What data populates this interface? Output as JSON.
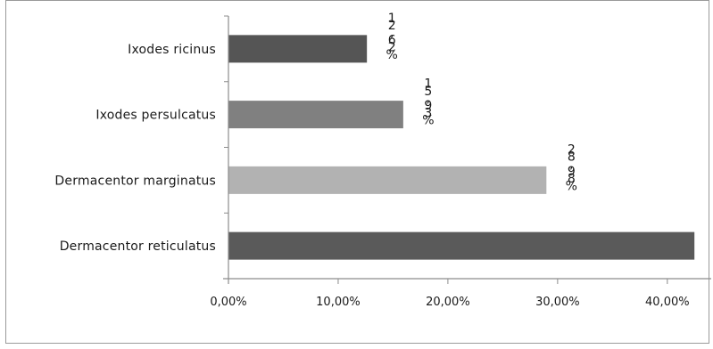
{
  "chart_data": {
    "type": "bar",
    "orientation": "horizontal",
    "title": "",
    "xlabel": "",
    "ylabel": "",
    "categories": [
      "Ixodes ricinus",
      "Ixodes persulcatus",
      "Dermacentor marginatus",
      "Dermacentor reticulatus"
    ],
    "values": [
      12.62,
      15.93,
      28.98,
      42.47
    ],
    "data_labels": [
      "12,62%",
      "15,93%",
      "28,98%",
      ""
    ],
    "bar_colors": [
      "#555555",
      "#808080",
      "#b2b2b2",
      "#5a5a5a"
    ],
    "xlim": [
      0,
      44
    ],
    "xticks": [
      0,
      10,
      20,
      30,
      40
    ],
    "xtick_labels": [
      "0,00%",
      "10,00%",
      "20,00%",
      "30,00%",
      "40,00%"
    ],
    "grid": false,
    "legend": "none"
  }
}
